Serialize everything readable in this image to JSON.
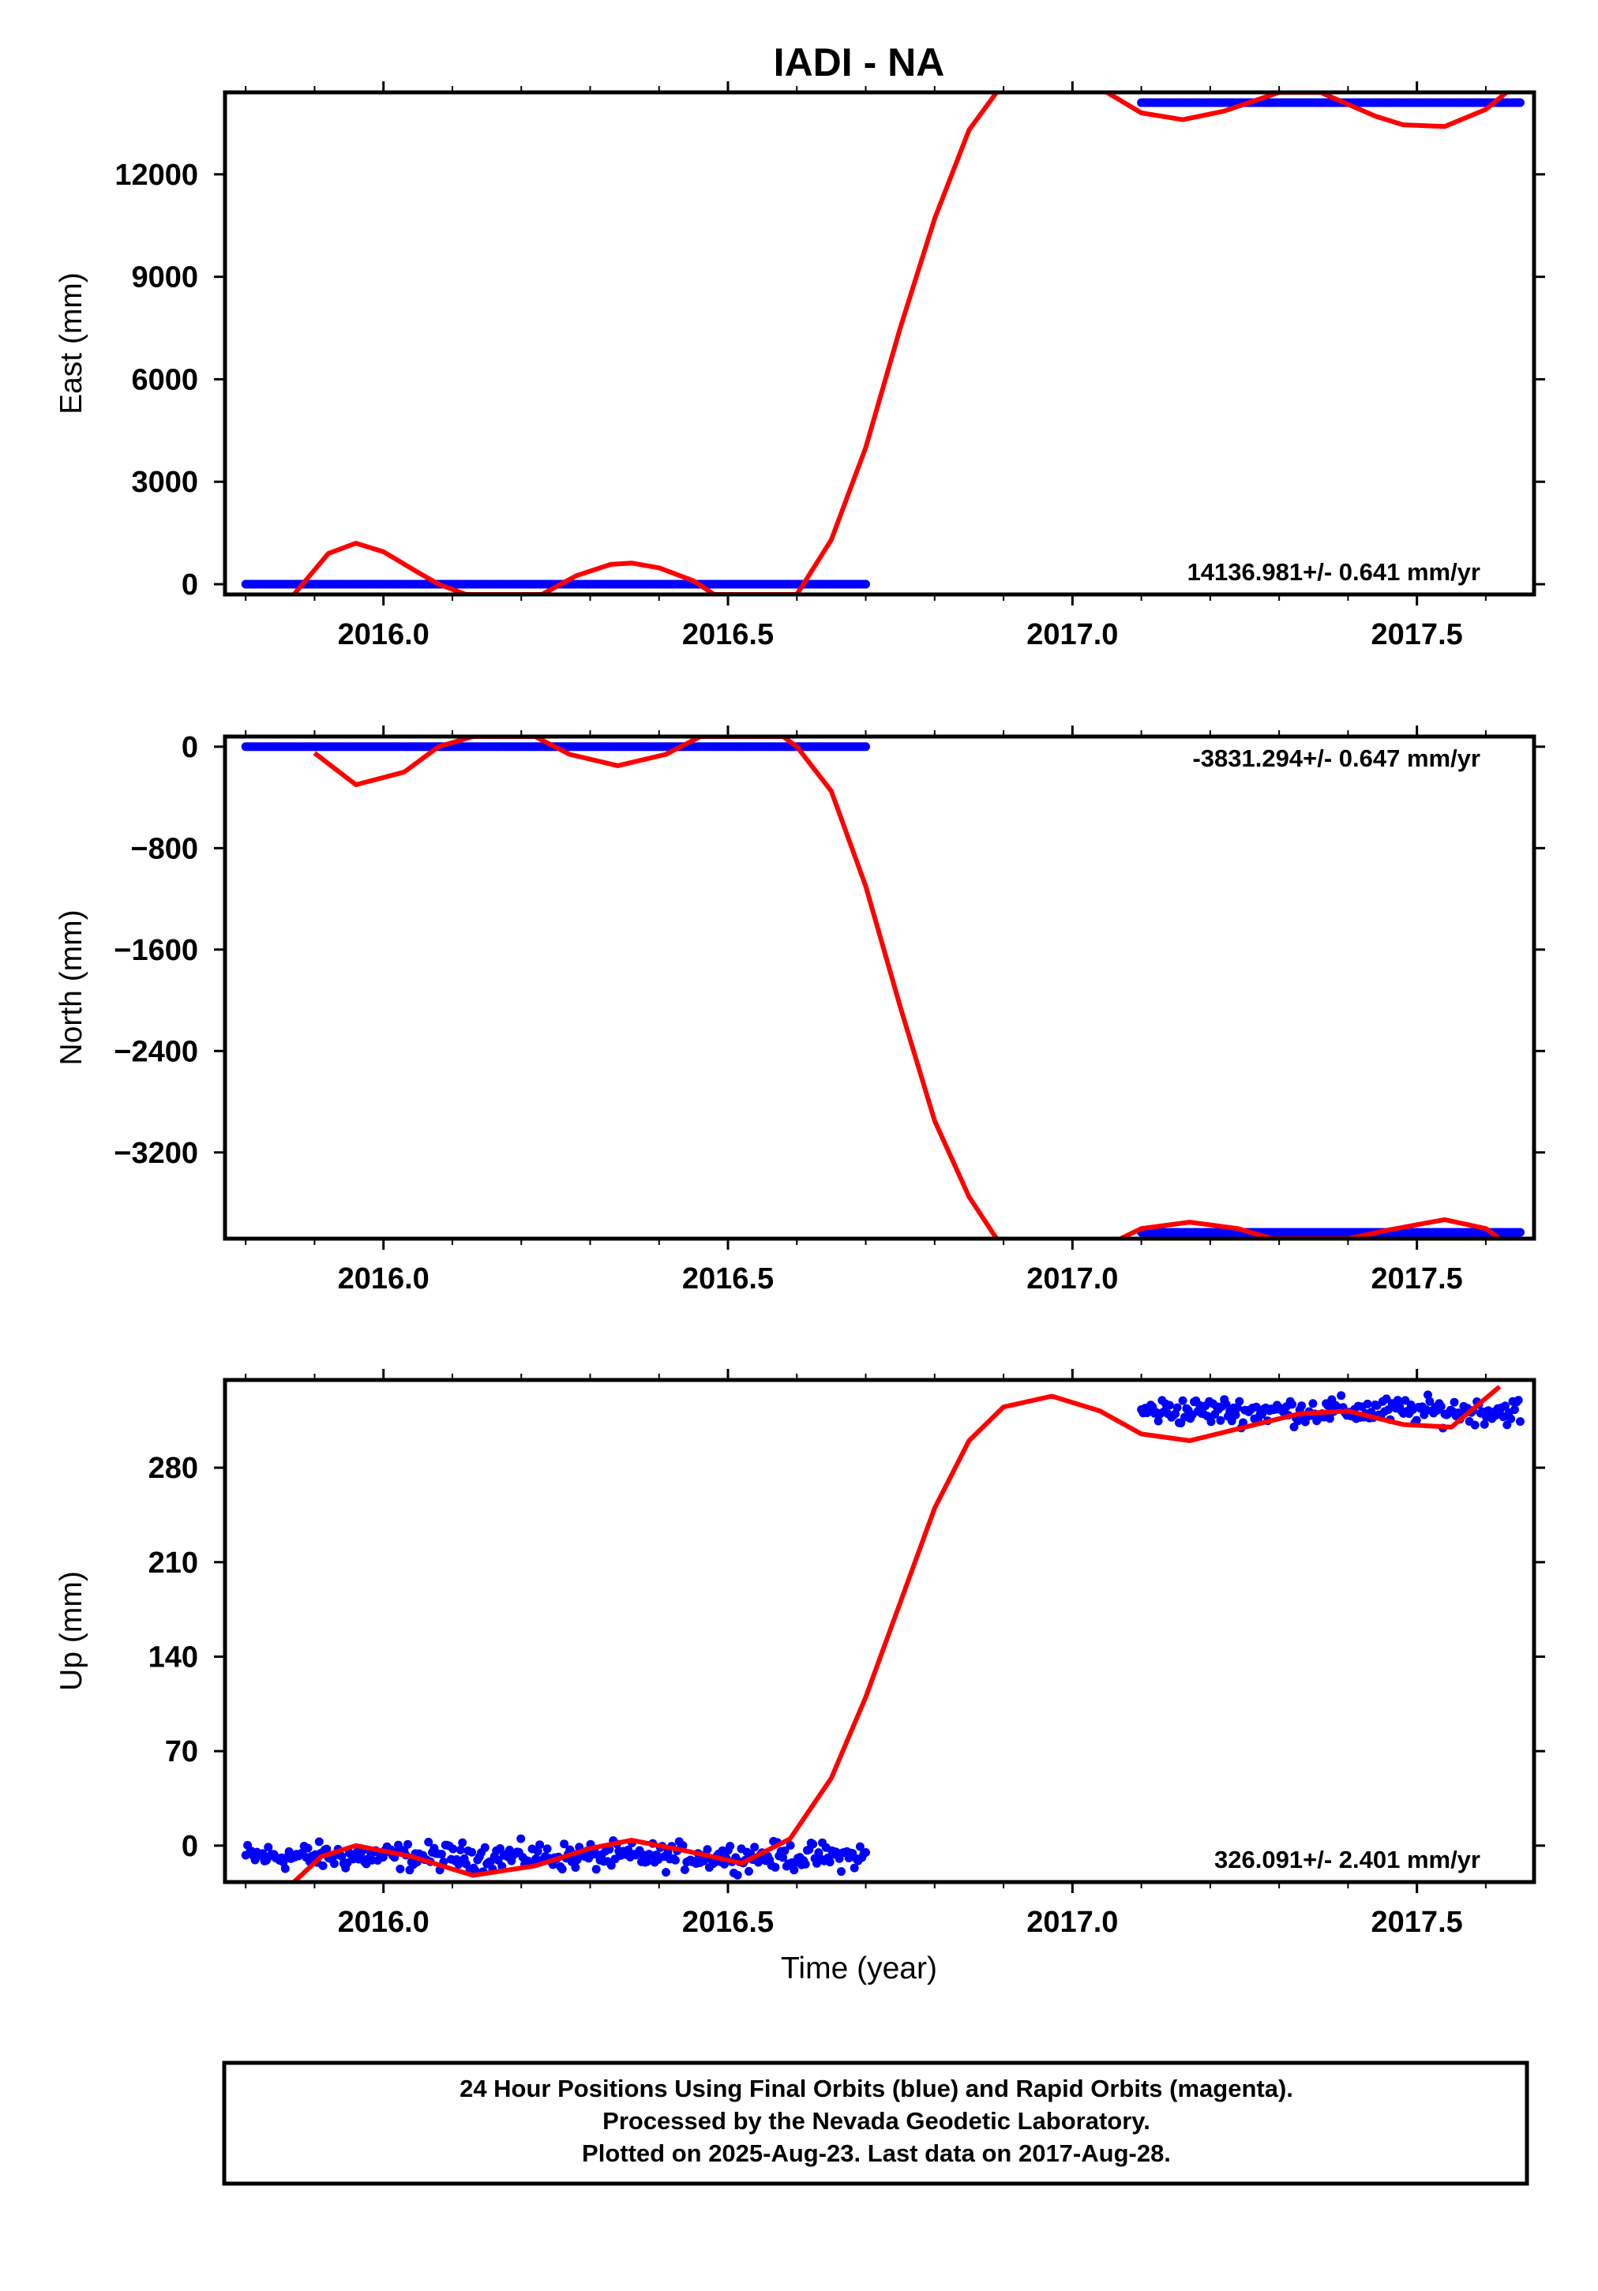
{
  "chart_data": {
    "type": "scatter",
    "title": "IADI - NA",
    "xlabel": "Time (year)",
    "x_ticks": [
      "2016.0",
      "2016.5",
      "2017.0",
      "2017.5"
    ],
    "xlim": [
      2015.77,
      2017.67
    ],
    "colors": {
      "data": "#0000ff",
      "model": "#ff0000",
      "frame": "#000000"
    },
    "panels": [
      {
        "ylabel": "East (mm)",
        "ylim": [
          -300,
          14400
        ],
        "y_ticks": [
          0,
          3000,
          6000,
          9000,
          12000
        ],
        "rate_text": "14136.981+/- 0.641 mm/yr",
        "data_segments": [
          {
            "x": [
              2015.8,
              2016.7
            ],
            "y": [
              0,
              0
            ]
          },
          {
            "x": [
              2017.1,
              2017.65
            ],
            "y": [
              14100,
              14100
            ]
          }
        ],
        "model_curve": {
          "x": [
            2015.87,
            2015.92,
            2015.96,
            2016.0,
            2016.05,
            2016.08,
            2016.12,
            2016.18,
            2016.23,
            2016.28,
            2016.33,
            2016.36,
            2016.4,
            2016.45,
            2016.48,
            2016.56,
            2016.6,
            2016.65,
            2016.7,
            2016.75,
            2016.8,
            2016.85,
            2016.89
          ],
          "y": [
            -300,
            900,
            1200,
            950,
            350,
            0,
            -300,
            -300,
            -300,
            250,
            580,
            620,
            480,
            100,
            -300,
            -300,
            -300,
            1300,
            4000,
            7500,
            10700,
            13300,
            14400
          ]
        },
        "model_curve_2": {
          "x": [
            2017.05,
            2017.1,
            2017.16,
            2017.22,
            2017.3,
            2017.36,
            2017.44,
            2017.48,
            2017.54,
            2017.6,
            2017.63
          ],
          "y": [
            14400,
            13800,
            13600,
            13850,
            14400,
            14400,
            13700,
            13450,
            13400,
            13900,
            14400
          ]
        }
      },
      {
        "ylabel": "North (mm)",
        "ylim": [
          -3880,
          80
        ],
        "y_ticks": [
          0,
          -800,
          -1600,
          -2400,
          -3200
        ],
        "rate_text": "-3831.294+/- 0.647 mm/yr",
        "data_segments": [
          {
            "x": [
              2015.8,
              2016.7
            ],
            "y": [
              0,
              0
            ]
          },
          {
            "x": [
              2017.1,
              2017.65
            ],
            "y": [
              -3830,
              -3830
            ]
          }
        ],
        "model_curve": {
          "x": [
            2015.9,
            2015.96,
            2016.03,
            2016.08,
            2016.13,
            2016.22,
            2016.27,
            2016.34,
            2016.41,
            2016.46,
            2016.58,
            2016.6,
            2016.65,
            2016.7,
            2016.75,
            2016.8,
            2016.85,
            2016.89
          ],
          "y": [
            -50,
            -300,
            -200,
            0,
            80,
            80,
            -60,
            -150,
            -60,
            80,
            80,
            0,
            -350,
            -1100,
            -2050,
            -2950,
            -3550,
            -3880
          ]
        },
        "model_curve_2": {
          "x": [
            2017.07,
            2017.1,
            2017.17,
            2017.24,
            2017.29,
            2017.4,
            2017.46,
            2017.54,
            2017.6,
            2017.62
          ],
          "y": [
            -3880,
            -3800,
            -3750,
            -3800,
            -3880,
            -3880,
            -3810,
            -3730,
            -3800,
            -3880
          ]
        }
      },
      {
        "ylabel": "Up (mm)",
        "ylim": [
          -27,
          345
        ],
        "y_ticks": [
          0,
          70,
          140,
          210,
          280
        ],
        "rate_text": "326.091+/- 2.401 mm/yr",
        "data_segments": [
          {
            "x": [
              2015.8,
              2016.7
            ],
            "y": [
              -8,
              -8
            ]
          },
          {
            "x": [
              2017.1,
              2017.65
            ],
            "y": [
              322,
              322
            ]
          }
        ],
        "model_curve": {
          "x": [
            2015.87,
            2015.91,
            2015.96,
            2016.04,
            2016.13,
            2016.22,
            2016.3,
            2016.36,
            2016.44,
            2016.52,
            2016.59,
            2016.65,
            2016.7,
            2016.75,
            2016.8,
            2016.85,
            2016.9,
            2016.97,
            2017.04,
            2017.1,
            2017.17,
            2017.25,
            2017.33,
            2017.4,
            2017.48,
            2017.55,
            2017.62
          ],
          "y": [
            -27,
            -8,
            0,
            -8,
            -22,
            -15,
            -2,
            4,
            -4,
            -13,
            5,
            50,
            110,
            180,
            250,
            300,
            325,
            333,
            322,
            305,
            300,
            310,
            320,
            322,
            312,
            310,
            340
          ]
        }
      }
    ],
    "footer_lines": [
      "24 Hour Positions Using Final Orbits (blue) and Rapid Orbits (magenta).",
      "Processed by the Nevada Geodetic Laboratory.",
      "Plotted on 2025-Aug-23. Last data on 2017-Aug-28."
    ]
  }
}
